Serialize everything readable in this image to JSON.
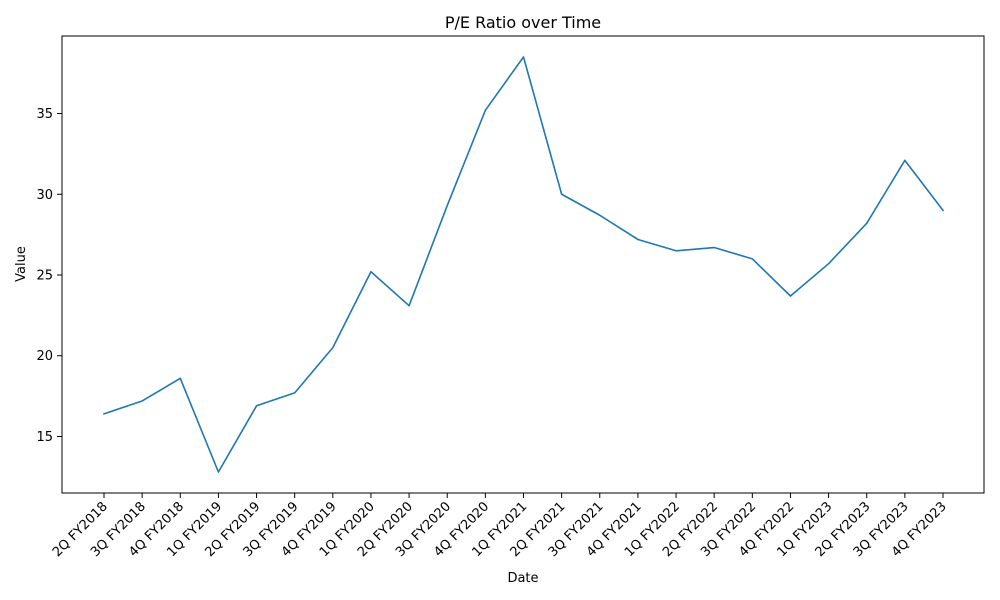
{
  "chart_data": {
    "type": "line",
    "title": "P/E Ratio over Time",
    "xlabel": "Date",
    "ylabel": "Value",
    "categories": [
      "2Q FY2018",
      "3Q FY2018",
      "4Q FY2018",
      "1Q FY2019",
      "2Q FY2019",
      "3Q FY2019",
      "4Q FY2019",
      "1Q FY2020",
      "2Q FY2020",
      "3Q FY2020",
      "4Q FY2020",
      "1Q FY2021",
      "2Q FY2021",
      "3Q FY2021",
      "4Q FY2021",
      "1Q FY2022",
      "2Q FY2022",
      "3Q FY2022",
      "4Q FY2022",
      "1Q FY2023",
      "2Q FY2023",
      "3Q FY2023",
      "4Q FY2023"
    ],
    "series": [
      {
        "values": [
          16.4,
          17.2,
          18.6,
          12.8,
          16.9,
          17.7,
          20.5,
          25.2,
          23.1,
          29.3,
          35.2,
          38.5,
          30.0,
          28.7,
          27.2,
          26.5,
          26.7,
          26.0,
          23.7,
          25.7,
          28.2,
          32.1,
          29.0
        ],
        "color": "#1f77b4"
      }
    ],
    "yticks": [
      15,
      20,
      25,
      30,
      35
    ],
    "ylim": [
      11.5,
      39.8
    ],
    "grid": false,
    "legend": "none"
  }
}
